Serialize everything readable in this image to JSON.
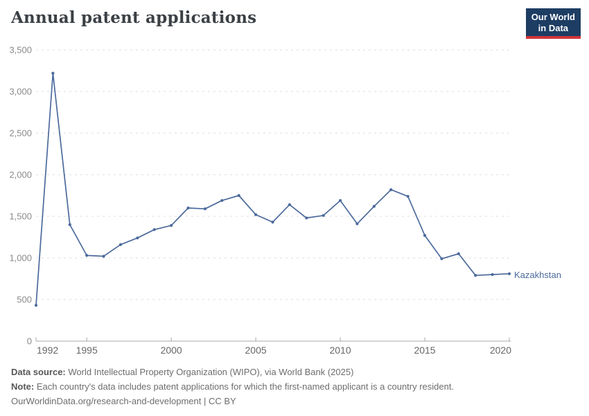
{
  "header": {
    "title": "Annual patent applications"
  },
  "logo": {
    "line1": "Our World",
    "line2": "in Data",
    "background_color": "#1d3d63",
    "underline_color": "#d1353a",
    "text_color": "#ffffff"
  },
  "chart_data": {
    "type": "line",
    "title": "Annual patent applications",
    "xlabel": "",
    "ylabel": "",
    "x": [
      1992,
      1993,
      1994,
      1995,
      1996,
      1997,
      1998,
      1999,
      2000,
      2001,
      2002,
      2003,
      2004,
      2005,
      2006,
      2007,
      2008,
      2009,
      2010,
      2011,
      2012,
      2013,
      2014,
      2015,
      2016,
      2017,
      2018,
      2019,
      2020
    ],
    "series": [
      {
        "name": "Kazakhstan",
        "color": "#4C6A9C",
        "values": [
          430,
          3220,
          1400,
          1030,
          1020,
          1160,
          1240,
          1340,
          1390,
          1600,
          1590,
          1690,
          1750,
          1520,
          1430,
          1640,
          1480,
          1510,
          1690,
          1410,
          1620,
          1820,
          1740,
          1270,
          990,
          1050,
          790,
          800,
          810
        ]
      }
    ],
    "xlim": [
      1992,
      2020
    ],
    "ylim": [
      0,
      3500
    ],
    "xticks": [
      1992,
      1995,
      2000,
      2005,
      2010,
      2015,
      2020
    ],
    "xtick_labels": [
      "1992",
      "1995",
      "2000",
      "2005",
      "2010",
      "2015",
      "2020"
    ],
    "yticks": [
      0,
      500,
      1000,
      1500,
      2000,
      2500,
      3000,
      3500
    ],
    "ytick_labels": [
      "0",
      "500",
      "1,000",
      "1,500",
      "2,000",
      "2,500",
      "3,000",
      "3,500"
    ],
    "grid": "horizontal-dashed",
    "legend_position": "line-end-label",
    "end_label": "Kazakhstan",
    "colors": {
      "line": "#4C6A9C",
      "gridline": "#dcdcdc",
      "axis": "#a8a8a8",
      "y_tick_label": "#8a8a8a",
      "x_tick_label": "#666666"
    }
  },
  "footer": {
    "datasource_label": "Data source:",
    "datasource_text": " World Intellectual Property Organization (WIPO), via World Bank (2025)",
    "note_label": "Note:",
    "note_text": " Each country's data includes patent applications for which the first-named applicant is a country resident.",
    "license_line": "OurWorldinData.org/research-and-development | CC BY"
  }
}
